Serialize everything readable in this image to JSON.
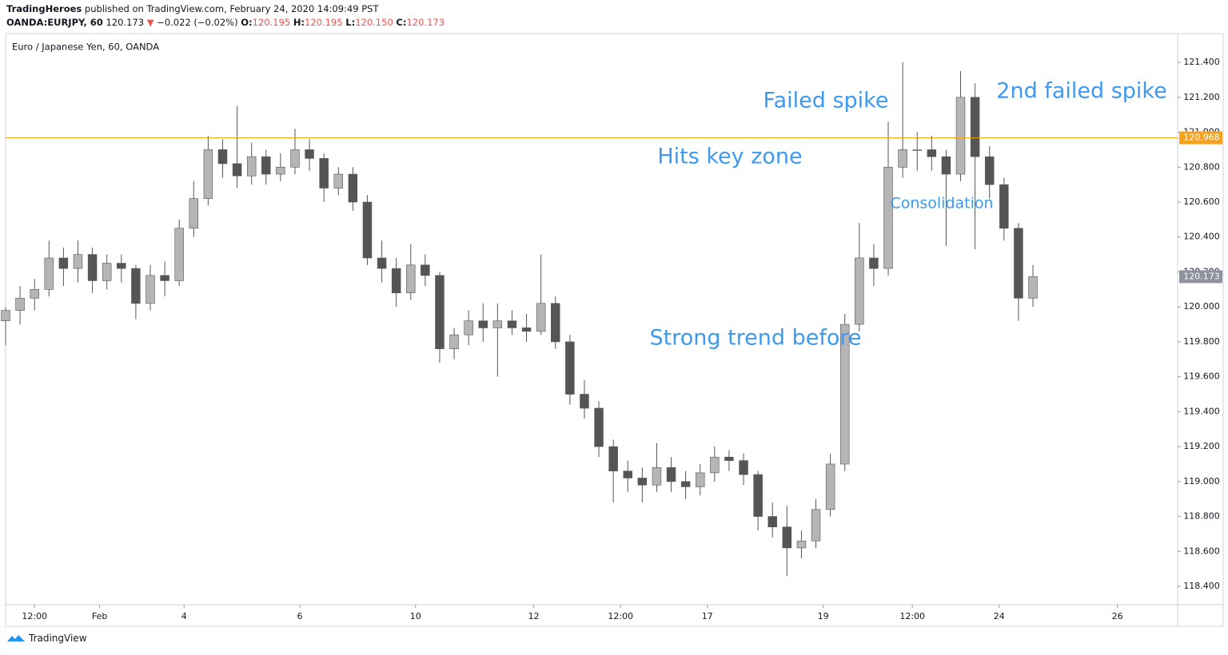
{
  "header": {
    "publisher": "TradingHeroes",
    "published": "published on TradingView.com, February 24, 2020 14:09:49 PST",
    "symbol_line": [
      "OANDA:EURJPY, 60",
      "120.173",
      "▼",
      "−0.022 (−0.02%)",
      "O:",
      "120.195",
      "H:",
      "120.195",
      "L:",
      "120.150",
      "C:",
      "120.173"
    ]
  },
  "chart_data": {
    "type": "candlestick",
    "title": "Euro / Japanese Yen, 60, OANDA",
    "x": [
      0,
      6,
      12,
      18,
      24,
      30,
      36,
      42,
      48,
      54,
      60,
      66,
      72,
      78,
      84,
      90,
      96,
      102,
      108,
      114,
      120,
      126,
      132,
      138,
      144,
      150,
      156,
      162,
      168,
      174,
      180,
      186,
      192,
      198,
      204,
      210,
      216,
      222,
      228,
      234,
      240,
      246,
      252,
      258,
      264,
      270,
      276,
      282,
      288,
      294,
      300,
      306,
      312,
      318,
      324,
      330,
      336,
      342,
      348,
      354,
      360,
      366,
      372,
      378,
      384,
      390,
      396,
      402,
      408,
      414,
      420,
      426
    ],
    "open": [
      119.92,
      119.98,
      120.05,
      120.1,
      120.28,
      120.22,
      120.3,
      120.15,
      120.25,
      120.22,
      120.02,
      120.18,
      120.15,
      120.45,
      120.62,
      120.9,
      120.82,
      120.75,
      120.86,
      120.76,
      120.8,
      120.9,
      120.85,
      120.68,
      120.76,
      120.6,
      120.28,
      120.22,
      120.08,
      120.24,
      120.18,
      119.76,
      119.84,
      119.92,
      119.88,
      119.92,
      119.88,
      119.86,
      120.02,
      119.8,
      119.5,
      119.42,
      119.2,
      119.06,
      119.02,
      118.98,
      119.08,
      119.0,
      118.97,
      119.05,
      119.14,
      119.12,
      119.04,
      118.8,
      118.74,
      118.62,
      118.66,
      118.84,
      119.1,
      119.9,
      120.28,
      120.22,
      120.8,
      120.9,
      120.9,
      120.86,
      120.76,
      121.2,
      120.86,
      120.7,
      120.45,
      120.05
    ],
    "high": [
      120.0,
      120.12,
      120.16,
      120.38,
      120.34,
      120.38,
      120.34,
      120.3,
      120.3,
      120.24,
      120.24,
      120.26,
      120.5,
      120.72,
      120.98,
      120.96,
      121.15,
      120.94,
      120.9,
      120.88,
      121.02,
      120.96,
      120.88,
      120.8,
      120.8,
      120.64,
      120.38,
      120.28,
      120.36,
      120.3,
      120.2,
      119.88,
      119.98,
      120.02,
      120.02,
      119.98,
      119.96,
      120.3,
      120.06,
      119.84,
      119.58,
      119.46,
      119.24,
      119.12,
      119.08,
      119.22,
      119.14,
      119.06,
      119.1,
      119.2,
      119.18,
      119.16,
      119.06,
      118.88,
      118.86,
      118.72,
      118.9,
      119.16,
      119.96,
      120.48,
      120.36,
      121.06,
      121.4,
      121.0,
      120.98,
      120.9,
      121.35,
      121.28,
      120.92,
      120.74,
      120.48,
      120.24
    ],
    "low": [
      119.78,
      119.9,
      119.98,
      120.06,
      120.12,
      120.14,
      120.08,
      120.1,
      120.14,
      119.93,
      119.98,
      120.06,
      120.12,
      120.4,
      120.58,
      120.74,
      120.68,
      120.7,
      120.7,
      120.72,
      120.76,
      120.78,
      120.6,
      120.64,
      120.55,
      120.24,
      120.14,
      120.0,
      120.04,
      120.12,
      119.68,
      119.7,
      119.78,
      119.8,
      119.6,
      119.84,
      119.8,
      119.84,
      119.76,
      119.44,
      119.36,
      119.14,
      118.88,
      118.94,
      118.88,
      118.94,
      118.94,
      118.9,
      118.92,
      119.0,
      119.06,
      118.98,
      118.72,
      118.68,
      118.46,
      118.56,
      118.62,
      118.8,
      119.06,
      119.86,
      120.12,
      120.18,
      120.74,
      120.78,
      120.78,
      120.35,
      120.72,
      120.33,
      120.62,
      120.38,
      119.92,
      120.0
    ],
    "close": [
      119.98,
      120.05,
      120.1,
      120.28,
      120.22,
      120.3,
      120.15,
      120.25,
      120.22,
      120.02,
      120.18,
      120.15,
      120.45,
      120.62,
      120.9,
      120.82,
      120.75,
      120.86,
      120.76,
      120.8,
      120.9,
      120.85,
      120.68,
      120.76,
      120.6,
      120.28,
      120.22,
      120.08,
      120.24,
      120.18,
      119.76,
      119.84,
      119.92,
      119.88,
      119.92,
      119.88,
      119.86,
      120.02,
      119.8,
      119.5,
      119.42,
      119.2,
      119.06,
      119.02,
      118.98,
      119.08,
      119.0,
      118.97,
      119.05,
      119.14,
      119.12,
      119.04,
      118.8,
      118.74,
      118.62,
      118.66,
      118.84,
      119.1,
      119.9,
      120.28,
      120.22,
      120.8,
      120.9,
      120.9,
      120.86,
      120.76,
      121.2,
      120.86,
      120.7,
      120.45,
      120.05,
      120.173
    ],
    "up_color": "#b5b5b5",
    "down_color": "#555555",
    "wick_color": "#555555",
    "xlim": [
      0,
      486
    ],
    "xticks": [
      {
        "value": 12,
        "label": "12:00"
      },
      {
        "value": 39,
        "label": "Feb"
      },
      {
        "value": 74,
        "label": "4"
      },
      {
        "value": 122,
        "label": "6"
      },
      {
        "value": 170,
        "label": "10"
      },
      {
        "value": 219,
        "label": "12"
      },
      {
        "value": 255,
        "label": "12:00"
      },
      {
        "value": 291,
        "label": "17"
      },
      {
        "value": 339,
        "label": "19"
      },
      {
        "value": 376,
        "label": "12:00"
      },
      {
        "value": 412,
        "label": "24"
      },
      {
        "value": 461,
        "label": "26"
      }
    ],
    "ylim": [
      118.295,
      121.565
    ],
    "yticks": [
      {
        "value": 118.4,
        "label": "118.400"
      },
      {
        "value": 118.6,
        "label": "118.600"
      },
      {
        "value": 118.8,
        "label": "118.800"
      },
      {
        "value": 119.0,
        "label": "119.000"
      },
      {
        "value": 119.2,
        "label": "119.200"
      },
      {
        "value": 119.4,
        "label": "119.400"
      },
      {
        "value": 119.6,
        "label": "119.600"
      },
      {
        "value": 119.8,
        "label": "119.800"
      },
      {
        "value": 120.0,
        "label": "120.000"
      },
      {
        "value": 120.2,
        "label": "120.200"
      },
      {
        "value": 120.4,
        "label": "120.400"
      },
      {
        "value": 120.6,
        "label": "120.600"
      },
      {
        "value": 120.8,
        "label": "120.800"
      },
      {
        "value": 121.0,
        "label": "121.000"
      },
      {
        "value": 121.2,
        "label": "121.200"
      },
      {
        "value": 121.4,
        "label": "121.400"
      }
    ],
    "grid": false,
    "hline": {
      "value": 120.968,
      "color": "#f7a21b"
    },
    "last_price_color": "#8d929e",
    "annotation_color": "#3d9af0",
    "annotations": [
      "Failed spike",
      "2nd failed spike",
      "Hits key zone",
      "Consolidation",
      "Strong trend before"
    ]
  },
  "footer": {
    "brand": "TradingView"
  }
}
